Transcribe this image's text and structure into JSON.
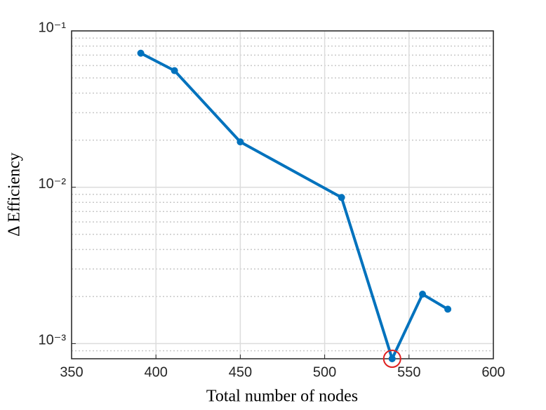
{
  "chart_data": {
    "type": "line",
    "xlabel": "Total number of nodes",
    "ylabel": "Δ Efficiency",
    "x": [
      391,
      411,
      450,
      510,
      540,
      558,
      573
    ],
    "series": [
      {
        "color": "#0072bd",
        "values": [
          0.072,
          0.0557,
          0.0195,
          0.0086,
          0.0008,
          0.00207,
          0.00166
        ]
      }
    ],
    "xlim": [
      350,
      600
    ],
    "xticks": [
      350,
      400,
      450,
      500,
      550,
      600
    ],
    "ylim": [
      0.0008,
      0.1
    ],
    "ylog": true,
    "yticks": [
      {
        "value": 0.001,
        "label": "10⁻³"
      },
      {
        "value": 0.01,
        "label": "10⁻²"
      },
      {
        "value": 0.1,
        "label": "10⁻¹"
      }
    ],
    "yminorticks": [
      0.0009,
      0.002,
      0.003,
      0.004,
      0.005,
      0.006,
      0.007,
      0.008,
      0.009,
      0.02,
      0.03,
      0.04,
      0.05,
      0.06,
      0.07,
      0.08,
      0.09
    ],
    "grid": true,
    "highlight_index": 4,
    "highlight_color": "#e02020"
  }
}
